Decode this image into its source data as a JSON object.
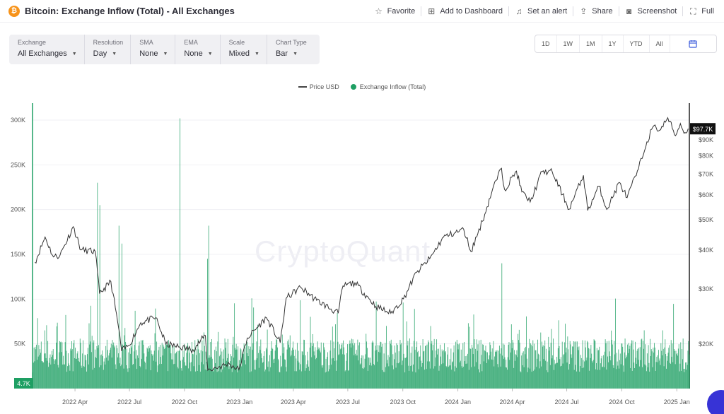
{
  "header": {
    "coin_symbol": "₿",
    "title": "Bitcoin: Exchange Inflow (Total) - All Exchanges",
    "actions": [
      {
        "label": "Favorite",
        "icon": "star-icon"
      },
      {
        "label": "Add to Dashboard",
        "icon": "dashboard-add-icon"
      },
      {
        "label": "Set an alert",
        "icon": "bell-icon"
      },
      {
        "label": "Share",
        "icon": "share-icon"
      },
      {
        "label": "Screenshot",
        "icon": "camera-icon"
      },
      {
        "label": "Full",
        "icon": "fullscreen-icon"
      }
    ]
  },
  "controls": [
    {
      "label": "Exchange",
      "value": "All Exchanges"
    },
    {
      "label": "Resolution",
      "value": "Day"
    },
    {
      "label": "SMA",
      "value": "None"
    },
    {
      "label": "EMA",
      "value": "None"
    },
    {
      "label": "Scale",
      "value": "Mixed"
    },
    {
      "label": "Chart Type",
      "value": "Bar"
    }
  ],
  "ranges": [
    "1D",
    "1W",
    "1M",
    "1Y",
    "YTD",
    "All"
  ],
  "watermark": "CryptoQuant",
  "colors": {
    "bars": "#1e9f63",
    "price": "#333333",
    "accent": "#3b5bdb",
    "coin": "#f7931a"
  },
  "chart_data": {
    "type": "bar",
    "series": [
      {
        "name": "Price USD",
        "type": "line",
        "axis": "right",
        "scale": "log"
      },
      {
        "name": "Exchange Inflow (Total)",
        "type": "bar",
        "axis": "left"
      }
    ],
    "x_ticks": [
      "2022 Apr",
      "2022 Jul",
      "2022 Oct",
      "2023 Jan",
      "2023 Apr",
      "2023 Jul",
      "2023 Oct",
      "2024 Jan",
      "2024 Apr",
      "2024 Jul",
      "2024 Oct",
      "2025 Jan"
    ],
    "xlim": [
      "2022-01-20",
      "2025-01-22"
    ],
    "left_ticks": [
      "50K",
      "100K",
      "150K",
      "200K",
      "250K",
      "300K"
    ],
    "left_tick_values": [
      50000,
      100000,
      150000,
      200000,
      250000,
      300000
    ],
    "ylim_left": [
      0,
      300000
    ],
    "right_ticks": [
      "$20K",
      "$30K",
      "$40K",
      "$50K",
      "$60K",
      "$70K",
      "$80K",
      "$90K"
    ],
    "right_tick_values": [
      20000,
      30000,
      40000,
      50000,
      60000,
      70000,
      80000,
      90000
    ],
    "ylim_right": [
      13000,
      105000
    ],
    "last_price_label": "$97.7K",
    "last_price": 97700,
    "last_inflow_label": "4.7K",
    "last_inflow": 4700,
    "price_points": [
      [
        "2022-01-24",
        36500
      ],
      [
        "2022-02-10",
        44000
      ],
      [
        "2022-02-24",
        38000
      ],
      [
        "2022-03-07",
        38500
      ],
      [
        "2022-03-29",
        47500
      ],
      [
        "2022-04-11",
        40000
      ],
      [
        "2022-05-05",
        39500
      ],
      [
        "2022-05-12",
        29000
      ],
      [
        "2022-05-31",
        31700
      ],
      [
        "2022-06-13",
        22500
      ],
      [
        "2022-06-18",
        19000
      ],
      [
        "2022-06-30",
        19800
      ],
      [
        "2022-07-20",
        23400
      ],
      [
        "2022-08-14",
        24300
      ],
      [
        "2022-08-31",
        20000
      ],
      [
        "2022-09-15",
        19700
      ],
      [
        "2022-10-15",
        19200
      ],
      [
        "2022-11-05",
        21300
      ],
      [
        "2022-11-09",
        16500
      ],
      [
        "2022-12-15",
        17300
      ],
      [
        "2022-12-31",
        16550
      ],
      [
        "2023-01-14",
        20900
      ],
      [
        "2023-02-15",
        24300
      ],
      [
        "2023-03-10",
        20200
      ],
      [
        "2023-03-20",
        28000
      ],
      [
        "2023-04-13",
        30400
      ],
      [
        "2023-05-10",
        27600
      ],
      [
        "2023-06-15",
        25100
      ],
      [
        "2023-06-23",
        30700
      ],
      [
        "2023-07-13",
        31400
      ],
      [
        "2023-08-17",
        26400
      ],
      [
        "2023-09-11",
        25100
      ],
      [
        "2023-10-02",
        27900
      ],
      [
        "2023-10-24",
        33900
      ],
      [
        "2023-11-15",
        37500
      ],
      [
        "2023-12-08",
        44000
      ],
      [
        "2024-01-11",
        46500
      ],
      [
        "2024-01-23",
        39500
      ],
      [
        "2024-02-15",
        52000
      ],
      [
        "2024-02-28",
        62500
      ],
      [
        "2024-03-14",
        73000
      ],
      [
        "2024-03-19",
        62500
      ],
      [
        "2024-04-08",
        71500
      ],
      [
        "2024-04-17",
        61300
      ],
      [
        "2024-05-01",
        57000
      ],
      [
        "2024-05-21",
        71300
      ],
      [
        "2024-06-07",
        71000
      ],
      [
        "2024-06-24",
        60200
      ],
      [
        "2024-07-05",
        54000
      ],
      [
        "2024-07-29",
        69300
      ],
      [
        "2024-08-05",
        53500
      ],
      [
        "2024-08-24",
        64000
      ],
      [
        "2024-09-06",
        53900
      ],
      [
        "2024-09-27",
        65800
      ],
      [
        "2024-10-10",
        58800
      ],
      [
        "2024-10-29",
        72700
      ],
      [
        "2024-11-12",
        88700
      ],
      [
        "2024-11-22",
        99000
      ],
      [
        "2024-12-05",
        97000
      ],
      [
        "2024-12-17",
        106000
      ],
      [
        "2024-12-30",
        92800
      ],
      [
        "2025-01-07",
        101500
      ],
      [
        "2025-01-13",
        94500
      ],
      [
        "2025-01-20",
        97700
      ]
    ],
    "inflow_spikes": [
      [
        "2022-05-08",
        230000
      ],
      [
        "2022-05-12",
        205000
      ],
      [
        "2022-06-13",
        182000
      ],
      [
        "2022-06-18",
        162000
      ],
      [
        "2022-09-23",
        302000
      ],
      [
        "2022-11-08",
        145000
      ],
      [
        "2022-11-10",
        182000
      ],
      [
        "2024-03-14",
        140000
      ]
    ],
    "inflow_range": [
      15000,
      100000
    ]
  }
}
